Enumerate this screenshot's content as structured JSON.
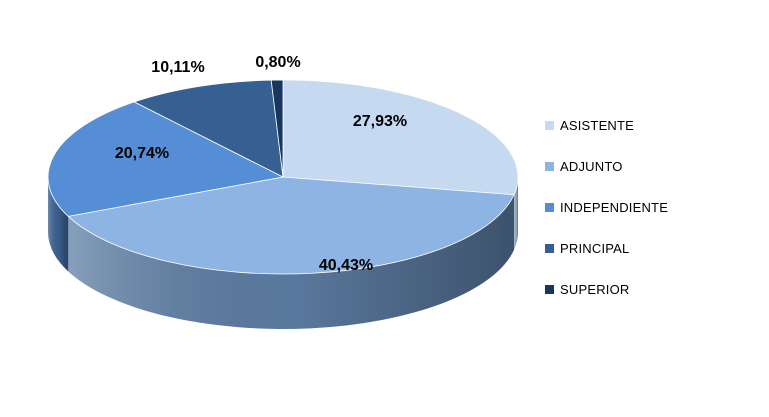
{
  "chart_data": {
    "type": "pie",
    "labels": [
      "ASISTENTE",
      "ADJUNTO",
      "INDEPENDIENTE",
      "PRINCIPAL",
      "SUPERIOR"
    ],
    "values": [
      27.93,
      40.43,
      20.74,
      10.11,
      0.8
    ],
    "value_labels": [
      "27,93%",
      "40,43%",
      "20,74%",
      "10,11%",
      "0,80%"
    ],
    "colors": [
      "#C5D9F1",
      "#8EB4E3",
      "#558ED5",
      "#366092",
      "#17375E"
    ],
    "side_colors": [
      "#9FB4CC",
      "#5E7FA6",
      "#3D6494",
      "#26456A",
      "#112A47"
    ],
    "legend_position": "right",
    "style": "3d"
  }
}
